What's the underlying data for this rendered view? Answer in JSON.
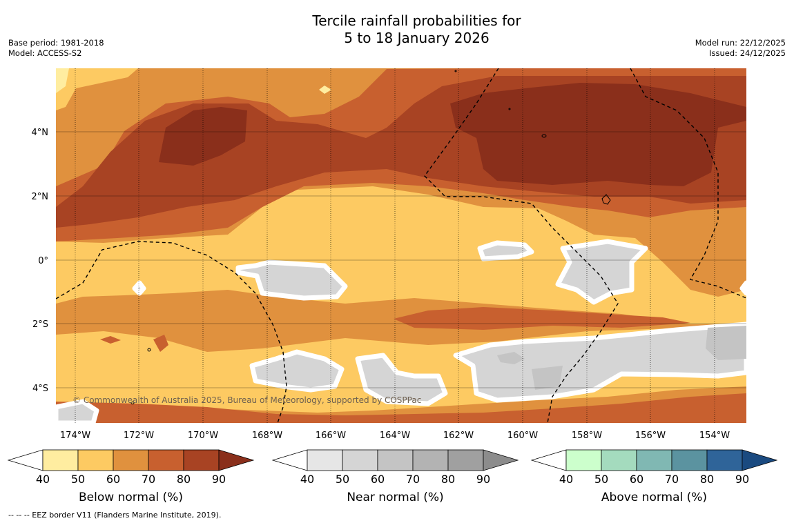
{
  "title_line1": "Tercile rainfall probabilities for",
  "title_line2": "5 to 18 January 2026",
  "base_period": "Base period: 1981-2018",
  "model": "Model: ACCESS-S2",
  "model_run": "Model run: 22/12/2025",
  "issued": "Issued: 24/12/2025",
  "copyright": "© Commonwealth of Australia 2025, Bureau of Meteorology, supported by COSPPac",
  "footnote": "--  --  -- EEZ border V11 (Flanders Marine Institute, 2019).",
  "map": {
    "lon_labels": [
      "174°W",
      "172°W",
      "170°W",
      "168°W",
      "166°W",
      "164°W",
      "162°W",
      "160°W",
      "158°W",
      "156°W",
      "154°W"
    ],
    "lat_labels": [
      "4°N",
      "2°N",
      "0°",
      "2°S",
      "4°S"
    ]
  },
  "colorbars": [
    {
      "title": "Below normal (%)",
      "ticks": [
        "40",
        "50",
        "60",
        "70",
        "80",
        "90"
      ],
      "colors": [
        "#ffffff",
        "#ffeda0",
        "#fdca62",
        "#e0913e",
        "#c8602f",
        "#a84323",
        "#8a2f1b"
      ]
    },
    {
      "title": "Near normal (%)",
      "ticks": [
        "40",
        "50",
        "60",
        "70",
        "80",
        "90"
      ],
      "colors": [
        "#ffffff",
        "#e6e6e6",
        "#d5d5d5",
        "#c4c4c4",
        "#b3b3b3",
        "#a0a0a0",
        "#8c8c8c"
      ]
    },
    {
      "title": "Above normal (%)",
      "ticks": [
        "40",
        "50",
        "60",
        "70",
        "80",
        "90"
      ],
      "colors": [
        "#ffffff",
        "#ccffcc",
        "#a4dbbe",
        "#80b8b3",
        "#5b93a0",
        "#2f6499",
        "#1a4a80"
      ]
    }
  ]
}
